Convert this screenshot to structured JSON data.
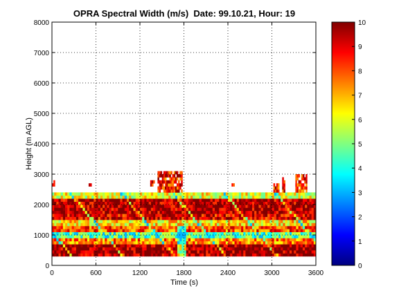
{
  "figure": {
    "title": "OPRA Spectral Width (m/s)  Date: 99.10.21, Hour: 19",
    "xlabel": "Time (s)",
    "ylabel": "Height (m AGL)"
  },
  "chart_data": {
    "type": "heatmap",
    "title": "OPRA Spectral Width (m/s)  Date: 99.10.21, Hour: 19",
    "xlabel": "Time (s)",
    "ylabel": "Height (m AGL)",
    "xlim": [
      0,
      3600
    ],
    "ylim": [
      0,
      8000
    ],
    "x_ticks": [
      0,
      600,
      1200,
      1800,
      2400,
      3000,
      3600
    ],
    "y_ticks": [
      0,
      1000,
      2000,
      3000,
      4000,
      5000,
      6000,
      7000,
      8000
    ],
    "grid": true,
    "colorbar": {
      "range": [
        0,
        10
      ],
      "ticks": [
        0,
        1,
        2,
        3,
        4,
        5,
        6,
        7,
        8,
        9,
        10
      ],
      "colormap": "jet",
      "placement": "right"
    },
    "data_extent": {
      "main_layer_top_m": 2400,
      "main_layer_bottom_m": 300,
      "sparse_echoes_max_m": 3100
    },
    "layers": [
      {
        "height_range": [
          300,
          700
        ],
        "typical_value": 9.7
      },
      {
        "height_range": [
          700,
          900
        ],
        "typical_value": 7.5
      },
      {
        "height_range": [
          900,
          1100
        ],
        "typical_value": 4.5
      },
      {
        "height_range": [
          1100,
          1300
        ],
        "typical_value": 8.0
      },
      {
        "height_range": [
          1300,
          1500
        ],
        "typical_value": 6.5
      },
      {
        "height_range": [
          1500,
          1700
        ],
        "typical_value": 9.0
      },
      {
        "height_range": [
          1700,
          2200
        ],
        "typical_value": 9.5
      },
      {
        "height_range": [
          2200,
          2400
        ],
        "typical_value": 6.0
      }
    ],
    "sparse_echoes": [
      {
        "time_range": [
          0,
          30
        ],
        "height_range": [
          2600,
          2800
        ]
      },
      {
        "time_range": [
          500,
          560
        ],
        "height_range": [
          2600,
          2700
        ]
      },
      {
        "time_range": [
          1340,
          1400
        ],
        "height_range": [
          2600,
          2800
        ]
      },
      {
        "time_range": [
          1440,
          1780
        ],
        "height_range": [
          2400,
          3100
        ]
      },
      {
        "time_range": [
          2450,
          2480
        ],
        "height_range": [
          2600,
          2700
        ]
      },
      {
        "time_range": [
          3020,
          3100
        ],
        "height_range": [
          2400,
          2700
        ]
      },
      {
        "time_range": [
          3140,
          3180
        ],
        "height_range": [
          2400,
          2900
        ]
      },
      {
        "time_range": [
          3320,
          3480
        ],
        "height_range": [
          2400,
          3000
        ]
      }
    ],
    "colors": {
      "high": "#800000",
      "mid": "#80ff80",
      "low": "#000080"
    }
  }
}
